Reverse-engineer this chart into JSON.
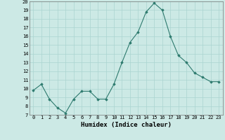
{
  "x": [
    0,
    1,
    2,
    3,
    4,
    5,
    6,
    7,
    8,
    9,
    10,
    11,
    12,
    13,
    14,
    15,
    16,
    17,
    18,
    19,
    20,
    21,
    22,
    23
  ],
  "y": [
    9.8,
    10.5,
    8.8,
    7.8,
    7.2,
    8.8,
    9.7,
    9.7,
    8.8,
    8.8,
    10.5,
    13.0,
    15.3,
    16.5,
    18.8,
    19.8,
    19.0,
    16.0,
    13.8,
    13.0,
    11.8,
    11.3,
    10.8,
    10.8
  ],
  "xlabel": "Humidex (Indice chaleur)",
  "ylim": [
    7,
    20
  ],
  "xlim_min": -0.5,
  "xlim_max": 23.5,
  "yticks": [
    7,
    8,
    9,
    10,
    11,
    12,
    13,
    14,
    15,
    16,
    17,
    18,
    19,
    20
  ],
  "xticks": [
    0,
    1,
    2,
    3,
    4,
    5,
    6,
    7,
    8,
    9,
    10,
    11,
    12,
    13,
    14,
    15,
    16,
    17,
    18,
    19,
    20,
    21,
    22,
    23
  ],
  "line_color": "#2d7a6e",
  "marker_color": "#2d7a6e",
  "bg_color": "#cce9e5",
  "grid_color": "#aad4d0",
  "tick_fontsize": 5.0,
  "xlabel_fontsize": 6.5
}
